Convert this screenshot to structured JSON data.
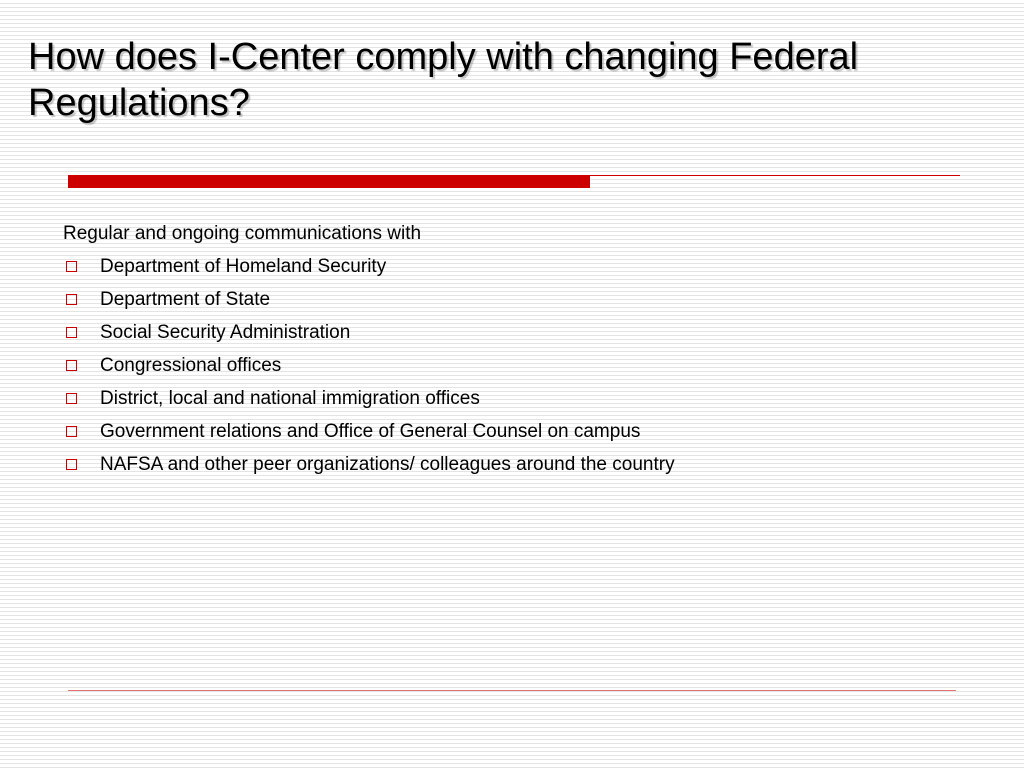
{
  "slide": {
    "title": "How does I-Center comply with changing Federal Regulations?",
    "intro": "Regular and ongoing communications with",
    "bullets": [
      "Department of Homeland Security",
      "Department of State",
      "Social Security Administration",
      "Congressional offices",
      "District, local and national immigration offices",
      "Government relations and Office of General Counsel on campus",
      "NAFSA and other peer organizations/ colleagues around the country"
    ],
    "bullet_icon": "hollow-square-bullet-icon",
    "colors": {
      "accent": "#cc0000",
      "text": "#000000",
      "background_stripe": "#e4e4e4"
    }
  }
}
